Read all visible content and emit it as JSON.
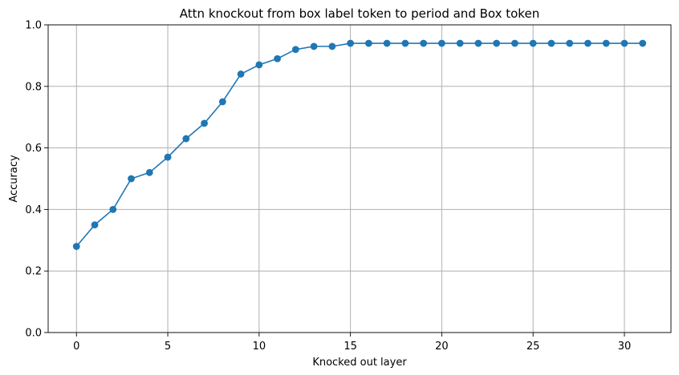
{
  "chart_data": {
    "type": "line",
    "title": "Attn knockout from box label token to period and Box token",
    "xlabel": "Knocked out layer",
    "ylabel": "Accuracy",
    "xlim": [
      -1.55,
      32.55
    ],
    "ylim": [
      0,
      1
    ],
    "x_ticks": [
      0,
      5,
      10,
      15,
      20,
      25,
      30
    ],
    "y_ticks": [
      0.0,
      0.2,
      0.4,
      0.6,
      0.8,
      1.0
    ],
    "grid": true,
    "series": [
      {
        "color": "#1f77b4",
        "marker": "circle",
        "x": [
          0,
          1,
          2,
          3,
          4,
          5,
          6,
          7,
          8,
          9,
          10,
          11,
          12,
          13,
          14,
          15,
          16,
          17,
          18,
          19,
          20,
          21,
          22,
          23,
          24,
          25,
          26,
          27,
          28,
          29,
          30,
          31
        ],
        "values": [
          0.28,
          0.35,
          0.4,
          0.5,
          0.52,
          0.57,
          0.63,
          0.68,
          0.75,
          0.84,
          0.87,
          0.89,
          0.92,
          0.93,
          0.93,
          0.94,
          0.94,
          0.94,
          0.94,
          0.94,
          0.94,
          0.94,
          0.94,
          0.94,
          0.94,
          0.94,
          0.94,
          0.94,
          0.94,
          0.94,
          0.94,
          0.94
        ]
      }
    ]
  }
}
